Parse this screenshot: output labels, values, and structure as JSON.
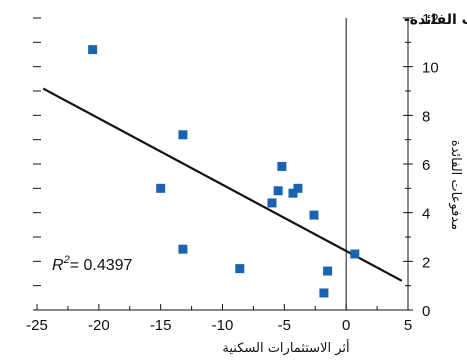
{
  "chart_data": {
    "type": "scatter",
    "title": "أثر الاستثمارات السكنية ومدفوعات الفائدة-",
    "xlabel": "أثر الاستثمارات السكنية",
    "ylabel": "مدفوعات الفائدة",
    "xlim": [
      -25,
      5
    ],
    "ylim": [
      0,
      12
    ],
    "x_ticks": [
      -25,
      -20,
      -15,
      -10,
      -5,
      0,
      5
    ],
    "x_tick_labels": [
      "-25",
      "-20",
      "-15",
      "-10",
      "-5",
      "0",
      "5"
    ],
    "y_ticks": [
      0,
      2,
      4,
      6,
      8,
      10,
      12
    ],
    "y_tick_labels": [
      "0",
      "2",
      "4",
      "6",
      "8",
      "10",
      "12"
    ],
    "points": [
      {
        "x": -20.5,
        "y": 10.7
      },
      {
        "x": -13.2,
        "y": 7.2
      },
      {
        "x": -15.0,
        "y": 5.0
      },
      {
        "x": -13.2,
        "y": 2.5
      },
      {
        "x": -8.6,
        "y": 1.7
      },
      {
        "x": -5.2,
        "y": 5.9
      },
      {
        "x": -5.5,
        "y": 4.9
      },
      {
        "x": -6.0,
        "y": 4.4
      },
      {
        "x": -4.3,
        "y": 4.8
      },
      {
        "x": -3.9,
        "y": 5.0
      },
      {
        "x": -2.6,
        "y": 3.9
      },
      {
        "x": -1.8,
        "y": 0.7
      },
      {
        "x": -1.5,
        "y": 1.6
      },
      {
        "x": 0.7,
        "y": 2.3
      }
    ],
    "trendline": {
      "x1": -24.5,
      "y1": 9.1,
      "x2": 4.5,
      "y2": 1.2
    },
    "vertical_ref_x": 0,
    "annotation": {
      "r_label": "R",
      "r_exp": "2",
      "r_value": "= 0.4397"
    },
    "marker_color": "#1a63b0",
    "line_color": "#111111",
    "grid": false,
    "legend": "none"
  }
}
